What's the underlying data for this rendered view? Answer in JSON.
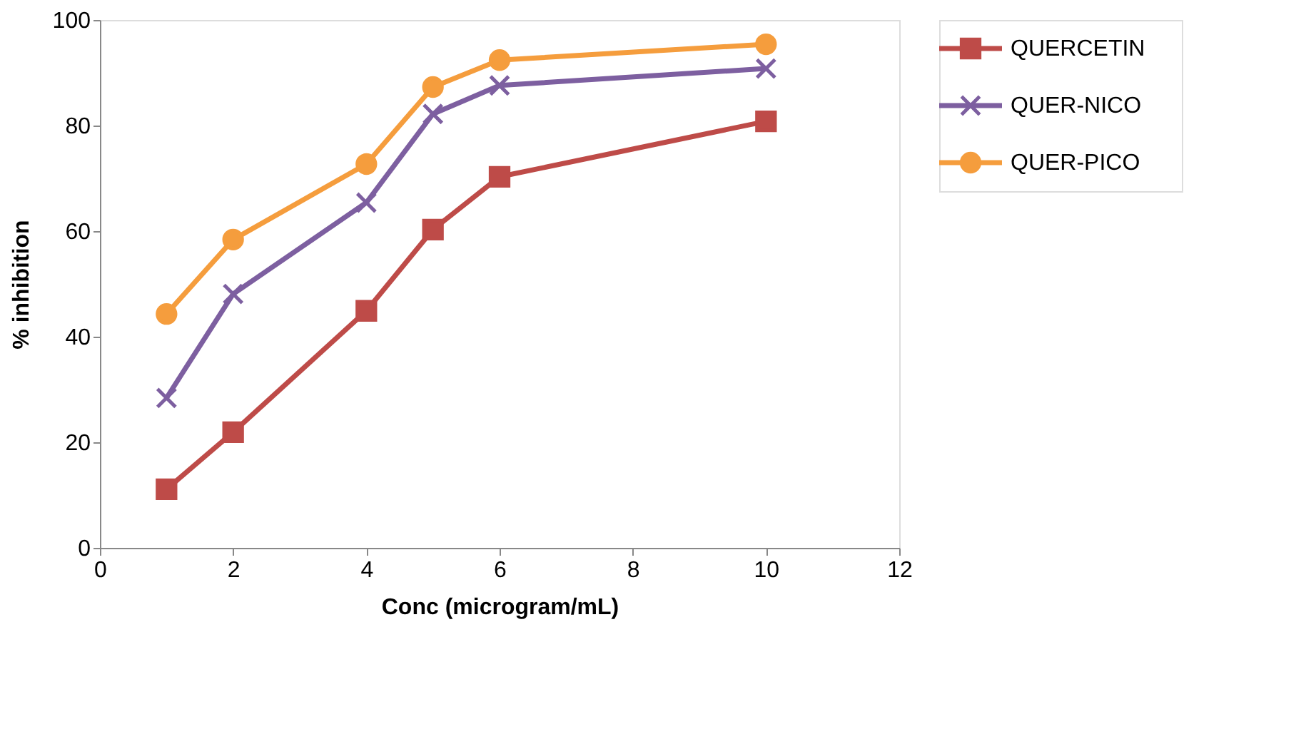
{
  "chart_data": {
    "type": "line",
    "xlabel": "Conc (microgram/mL)",
    "ylabel": "% inhibition",
    "x": [
      1,
      2,
      4,
      5,
      6,
      10
    ],
    "series": [
      {
        "name": "QUERCETIN",
        "color": "#be4b48",
        "marker": "square",
        "values": [
          11.1,
          21.9,
          44.9,
          60.3,
          70.3,
          80.8
        ]
      },
      {
        "name": "QUER-NICO",
        "color": "#7d5fa0",
        "marker": "cross",
        "values": [
          28.4,
          48.1,
          65.4,
          82.2,
          87.6,
          90.8
        ]
      },
      {
        "name": "QUER-PICO",
        "color": "#f59d3d",
        "marker": "circle",
        "values": [
          44.3,
          58.4,
          72.7,
          87.3,
          92.4,
          95.4
        ]
      }
    ],
    "xlim": [
      0,
      12
    ],
    "xticks": [
      0,
      2,
      4,
      6,
      8,
      10,
      12
    ],
    "ylim": [
      0,
      100
    ],
    "yticks": [
      0,
      20,
      40,
      60,
      80,
      100
    ],
    "grid": false,
    "legend": "right",
    "line_style": "solid"
  }
}
